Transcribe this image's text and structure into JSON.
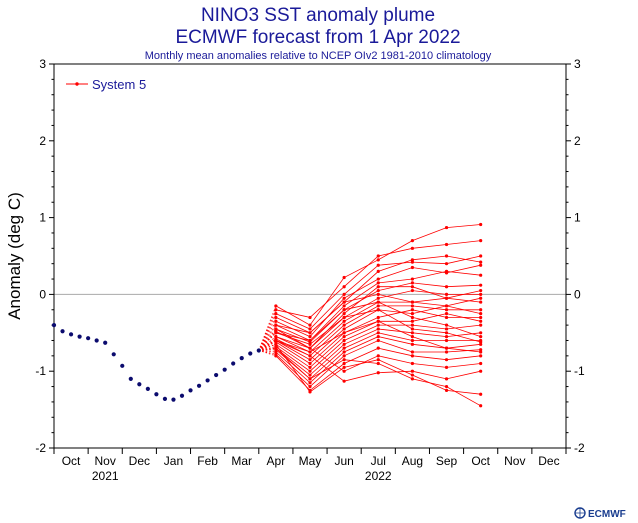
{
  "chart_data": {
    "type": "line",
    "title": "NINO3 SST anomaly plume",
    "subtitle": "ECMWF forecast from 1 Apr 2022",
    "caption": "Monthly mean anomalies relative to NCEP OIv2 1981-2010 climatology",
    "ylabel": "Anomaly (deg C)",
    "ylim": [
      -2,
      3
    ],
    "yticks": [
      "-2",
      "-1",
      "0",
      "1",
      "2",
      "3"
    ],
    "months": [
      "Oct",
      "Nov",
      "Dec",
      "Jan",
      "Feb",
      "Mar",
      "Apr",
      "May",
      "Jun",
      "Jul",
      "Aug",
      "Sep",
      "Oct",
      "Nov",
      "Dec"
    ],
    "years": [
      {
        "label": "2021",
        "under": "Nov"
      },
      {
        "label": "2022",
        "under": "Jul"
      }
    ],
    "legend": {
      "label": "System 5",
      "position": "top-left"
    },
    "colors": {
      "observed": "#0b0b6e",
      "forecast": "#ff0000",
      "text": "#1a1a99",
      "zero_line": "#aaaaaa"
    },
    "observed": {
      "x": [
        -0.5,
        -0.25,
        0,
        0.25,
        0.5,
        0.75,
        1,
        1.25,
        1.5,
        1.75,
        2,
        2.25,
        2.5,
        2.75,
        3,
        3.25,
        3.5,
        3.75,
        4,
        4.25,
        4.5,
        4.75,
        5,
        5.25,
        5.5
      ],
      "y": [
        -0.4,
        -0.48,
        -0.52,
        -0.55,
        -0.57,
        -0.6,
        -0.63,
        -0.78,
        -0.93,
        -1.1,
        -1.17,
        -1.23,
        -1.3,
        -1.36,
        -1.37,
        -1.32,
        -1.25,
        -1.19,
        -1.12,
        -1.05,
        -0.98,
        -0.9,
        -0.83,
        -0.77,
        -0.73
      ]
    },
    "forecast": {
      "start": {
        "x": 5.5,
        "y": -0.73
      },
      "x": [
        6,
        7,
        8,
        9,
        10,
        11,
        12
      ],
      "series": [
        [
          -0.15,
          -0.4,
          0.22,
          0.45,
          0.7,
          0.87,
          0.91
        ],
        [
          -0.2,
          -0.3,
          0.1,
          0.5,
          0.6,
          0.65,
          0.7
        ],
        [
          -0.25,
          -0.45,
          0.0,
          0.38,
          0.42,
          0.4,
          0.5
        ],
        [
          -0.3,
          -0.5,
          -0.1,
          0.3,
          0.45,
          0.5,
          0.42
        ],
        [
          -0.35,
          -0.55,
          -0.05,
          0.2,
          0.35,
          0.28,
          0.38
        ],
        [
          -0.4,
          -0.6,
          -0.15,
          0.15,
          0.2,
          0.3,
          0.25
        ],
        [
          -0.45,
          -0.62,
          -0.2,
          0.05,
          0.15,
          0.1,
          0.12
        ],
        [
          -0.48,
          -0.7,
          -0.25,
          0.1,
          0.1,
          -0.05,
          0.05
        ],
        [
          -0.5,
          -0.65,
          -0.3,
          -0.05,
          0.05,
          0.0,
          0.0
        ],
        [
          -0.55,
          -0.75,
          -0.35,
          -0.1,
          -0.1,
          -0.05,
          -0.1
        ],
        [
          -0.58,
          -0.8,
          -0.4,
          -0.15,
          -0.15,
          -0.2,
          -0.2
        ],
        [
          -0.6,
          -0.85,
          -0.45,
          -0.2,
          -0.25,
          -0.15,
          -0.25
        ],
        [
          -0.62,
          -0.9,
          -0.5,
          -0.3,
          -0.2,
          -0.3,
          -0.3
        ],
        [
          -0.65,
          -0.95,
          -0.55,
          -0.35,
          -0.35,
          -0.25,
          -0.35
        ],
        [
          -0.68,
          -1.0,
          -0.6,
          -0.4,
          -0.4,
          -0.45,
          -0.4
        ],
        [
          -0.7,
          -1.05,
          -0.65,
          -0.45,
          -0.5,
          -0.55,
          -0.5
        ],
        [
          -0.72,
          -1.1,
          -0.7,
          -0.5,
          -0.6,
          -0.6,
          -0.6
        ],
        [
          -0.75,
          -1.15,
          -0.75,
          -0.55,
          -0.65,
          -0.7,
          -0.65
        ],
        [
          -0.78,
          -1.2,
          -0.8,
          -0.6,
          -0.75,
          -0.75,
          -0.72
        ],
        [
          -0.8,
          -1.25,
          -0.9,
          -0.7,
          -0.8,
          -0.85,
          -0.8
        ],
        [
          -0.55,
          -0.7,
          -1.0,
          -0.8,
          -0.9,
          -0.95,
          -0.9
        ],
        [
          -0.6,
          -0.8,
          -1.13,
          -1.02,
          -1.0,
          -1.1,
          -1.0
        ],
        [
          -0.65,
          -1.27,
          -0.95,
          -0.85,
          -1.05,
          -1.25,
          -1.3
        ],
        [
          -0.7,
          -1.1,
          -0.85,
          -0.9,
          -1.1,
          -1.2,
          -1.45
        ],
        [
          -0.5,
          -0.6,
          -0.2,
          -0.1,
          -0.3,
          -0.4,
          -0.55
        ],
        [
          -0.45,
          -0.7,
          -0.3,
          -0.2,
          -0.45,
          -0.5,
          -0.62
        ],
        [
          -0.4,
          -0.5,
          -0.1,
          0.0,
          -0.1,
          -0.15,
          -0.05
        ],
        [
          -0.6,
          -0.75,
          -0.5,
          -0.35,
          -0.55,
          -0.7,
          -0.75
        ]
      ]
    }
  },
  "brand": {
    "logo_text": "ECMWF"
  }
}
